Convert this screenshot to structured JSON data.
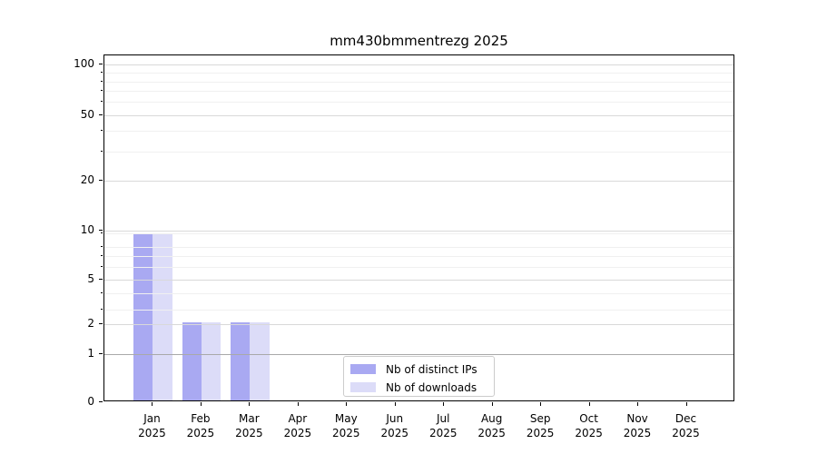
{
  "chart_data": {
    "type": "bar",
    "title": "mm430bmmentrezg 2025",
    "categories": [
      "Jan",
      "Feb",
      "Mar",
      "Apr",
      "May",
      "Jun",
      "Jul",
      "Aug",
      "Sep",
      "Oct",
      "Nov",
      "Dec"
    ],
    "category_year": "2025",
    "series": [
      {
        "name": "Nb of distinct IPs",
        "color": "#a9a9f2",
        "values": [
          9,
          2,
          2,
          0,
          0,
          0,
          0,
          0,
          0,
          0,
          0,
          0
        ]
      },
      {
        "name": "Nb of downloads",
        "color": "#dcdcf8",
        "values": [
          9,
          2,
          2,
          0,
          0,
          0,
          0,
          0,
          0,
          0,
          0,
          0
        ]
      }
    ],
    "xlabel": "",
    "ylabel": "",
    "yscale": "log above 1, linear below 1",
    "ylim": [
      0,
      110
    ],
    "ytick_labels": [
      "100",
      "50",
      "20",
      "10",
      "5",
      "2",
      "1",
      "0"
    ],
    "grid": "horizontal major and log-minor gridlines on",
    "legend_position": "inside axes, lower center",
    "layout_hints": {
      "ytick_fracs": {
        "100": 0.0262,
        "50": 0.1728,
        "20": 0.3613,
        "10": 0.5052,
        "5": 0.6466,
        "2": 0.7741,
        "1": 0.8621,
        "0": 1.0
      },
      "yminor_fracs": [
        0.0505,
        0.0767,
        0.1029,
        0.1322,
        0.218,
        0.2762,
        0.5139,
        0.5516,
        0.5791,
        0.611,
        0.6859,
        0.733
      ],
      "value_fracs": {
        "9": 0.519,
        "2": 0.7741,
        "0": 1.0
      },
      "bar_width_frac_of_slot": 0.4,
      "x_slots": 13
    },
    "colors": {
      "background": "#ffffff",
      "axis": "#000000",
      "text": "#000000",
      "grid_major": "#d9d9d9",
      "grid_minor": "#f0f0f0",
      "baseline_one": "#a9a9a9",
      "legend_border": "#cccccc"
    }
  }
}
